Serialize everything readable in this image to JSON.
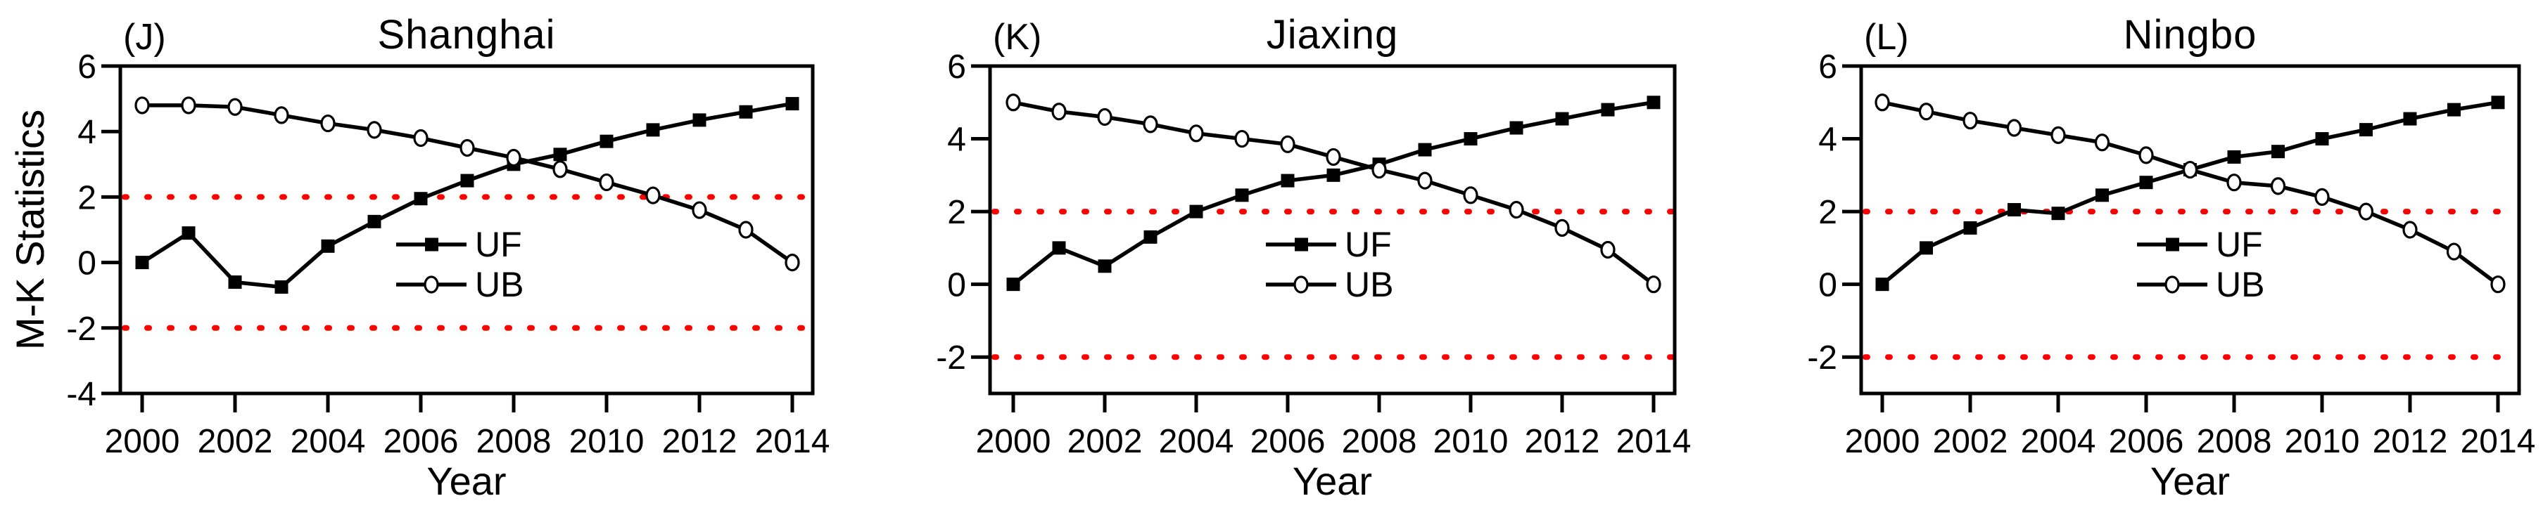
{
  "figure": {
    "ylabel": "M-K Statistics",
    "xlabel": "Year",
    "series_color": "#000000",
    "threshold_color": "#fe0000",
    "background": "#ffffff"
  },
  "chart_data": [
    {
      "type": "line",
      "panel_label": "(J)",
      "title": "Shanghai",
      "xlabel": "Year",
      "ylabel": "M-K Statistics",
      "x": [
        2000,
        2001,
        2002,
        2003,
        2004,
        2005,
        2006,
        2007,
        2008,
        2009,
        2010,
        2011,
        2012,
        2013,
        2014
      ],
      "xticks": [
        2000,
        2002,
        2004,
        2006,
        2008,
        2010,
        2012,
        2014
      ],
      "yticks": [
        -4,
        -2,
        0,
        2,
        4,
        6
      ],
      "ylim": [
        -4,
        6
      ],
      "thresholds": [
        2,
        -2
      ],
      "grid": false,
      "legend_position": "center",
      "series": [
        {
          "name": "UF",
          "marker": "filled-square",
          "values": [
            0.0,
            0.9,
            -0.6,
            -0.75,
            0.5,
            1.25,
            1.95,
            2.5,
            3.0,
            3.3,
            3.7,
            4.05,
            4.35,
            4.6,
            4.85
          ]
        },
        {
          "name": "UB",
          "marker": "open-circle",
          "values": [
            4.8,
            4.8,
            4.75,
            4.5,
            4.25,
            4.05,
            3.8,
            3.5,
            3.2,
            2.85,
            2.45,
            2.05,
            1.6,
            1.0,
            0.0
          ]
        }
      ]
    },
    {
      "type": "line",
      "panel_label": "(K)",
      "title": "Jiaxing",
      "xlabel": "Year",
      "ylabel": "M-K Statistics",
      "x": [
        2000,
        2001,
        2002,
        2003,
        2004,
        2005,
        2006,
        2007,
        2008,
        2009,
        2010,
        2011,
        2012,
        2013,
        2014
      ],
      "xticks": [
        2000,
        2002,
        2004,
        2006,
        2008,
        2010,
        2012,
        2014
      ],
      "yticks": [
        -2,
        0,
        2,
        4,
        6
      ],
      "ylim": [
        -3,
        6
      ],
      "thresholds": [
        2,
        -2
      ],
      "grid": false,
      "legend_position": "center",
      "series": [
        {
          "name": "UF",
          "marker": "filled-square",
          "values": [
            0.0,
            1.0,
            0.5,
            1.3,
            2.0,
            2.45,
            2.85,
            3.0,
            3.3,
            3.7,
            4.0,
            4.3,
            4.55,
            4.8,
            5.0
          ]
        },
        {
          "name": "UB",
          "marker": "open-circle",
          "values": [
            5.0,
            4.75,
            4.6,
            4.4,
            4.15,
            4.0,
            3.85,
            3.5,
            3.15,
            2.85,
            2.45,
            2.05,
            1.55,
            0.95,
            0.0
          ]
        }
      ]
    },
    {
      "type": "line",
      "panel_label": "(L)",
      "title": "Ningbo",
      "xlabel": "Year",
      "ylabel": "M-K Statistics",
      "x": [
        2000,
        2001,
        2002,
        2003,
        2004,
        2005,
        2006,
        2007,
        2008,
        2009,
        2010,
        2011,
        2012,
        2013,
        2014
      ],
      "xticks": [
        2000,
        2002,
        2004,
        2006,
        2008,
        2010,
        2012,
        2014
      ],
      "yticks": [
        -2,
        0,
        2,
        4,
        6
      ],
      "ylim": [
        -3,
        6
      ],
      "thresholds": [
        2,
        -2
      ],
      "grid": false,
      "legend_position": "center",
      "series": [
        {
          "name": "UF",
          "marker": "filled-square",
          "values": [
            0.0,
            1.0,
            1.55,
            2.05,
            1.95,
            2.45,
            2.8,
            3.15,
            3.5,
            3.65,
            4.0,
            4.25,
            4.55,
            4.8,
            5.0
          ]
        },
        {
          "name": "UB",
          "marker": "open-circle",
          "values": [
            5.0,
            4.75,
            4.5,
            4.3,
            4.1,
            3.9,
            3.55,
            3.15,
            2.8,
            2.7,
            2.4,
            2.0,
            1.5,
            0.9,
            0.0
          ]
        }
      ]
    }
  ]
}
